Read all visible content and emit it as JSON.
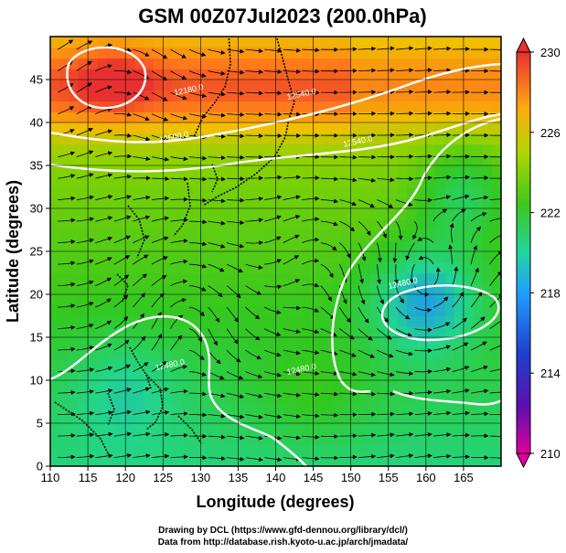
{
  "chart_data": {
    "type": "heatmap",
    "title": "GSM 00Z07Jul2023 (200.0hPa)",
    "xlabel": "Longitude (degrees)",
    "ylabel": "Latitude  (degrees)",
    "xlim": [
      110,
      170
    ],
    "ylim": [
      0,
      50
    ],
    "x_ticks": [
      110,
      115,
      120,
      125,
      130,
      135,
      140,
      145,
      150,
      155,
      160,
      165
    ],
    "y_ticks": [
      0,
      5,
      10,
      15,
      20,
      25,
      30,
      35,
      40,
      45
    ],
    "grid": true,
    "colorbar": {
      "min": 210,
      "max": 230,
      "ticks": [
        210,
        214,
        218,
        222,
        226,
        230
      ],
      "placement": "right"
    },
    "contours": [
      {
        "label": "12180.0",
        "lon": 128.5,
        "lat": 43.5
      },
      {
        "label": "12540.0",
        "lon": 143.5,
        "lat": 43.0
      },
      {
        "label": "12500.0",
        "lon": 126.5,
        "lat": 38.0
      },
      {
        "label": "12540.0",
        "lon": 151.0,
        "lat": 37.5
      },
      {
        "label": "12480.0",
        "lon": 157.0,
        "lat": 21.0
      },
      {
        "label": "12480.0",
        "lon": 143.5,
        "lat": 11.0
      },
      {
        "label": "12480.0",
        "lon": 126.0,
        "lat": 11.5
      }
    ],
    "features": [
      {
        "name": "warm high",
        "lon": 118.5,
        "lat": 45.0,
        "value": 229.5
      },
      {
        "name": "cool low",
        "lon": 160.0,
        "lat": 19.5,
        "value": 218.0
      }
    ]
  },
  "credits": {
    "line1": "Drawing by DCL (https://www.gfd-dennou.org/library/dcl/)",
    "line2": "Data from http://database.rish.kyoto-u.ac.jp/arch/jmadata/"
  },
  "colors": {
    "scale": [
      "#e0009e",
      "#1f1fb8",
      "#1f8fff",
      "#22d68c",
      "#33c820",
      "#8ed200",
      "#f0c000",
      "#ff7a1a",
      "#e83030"
    ]
  }
}
